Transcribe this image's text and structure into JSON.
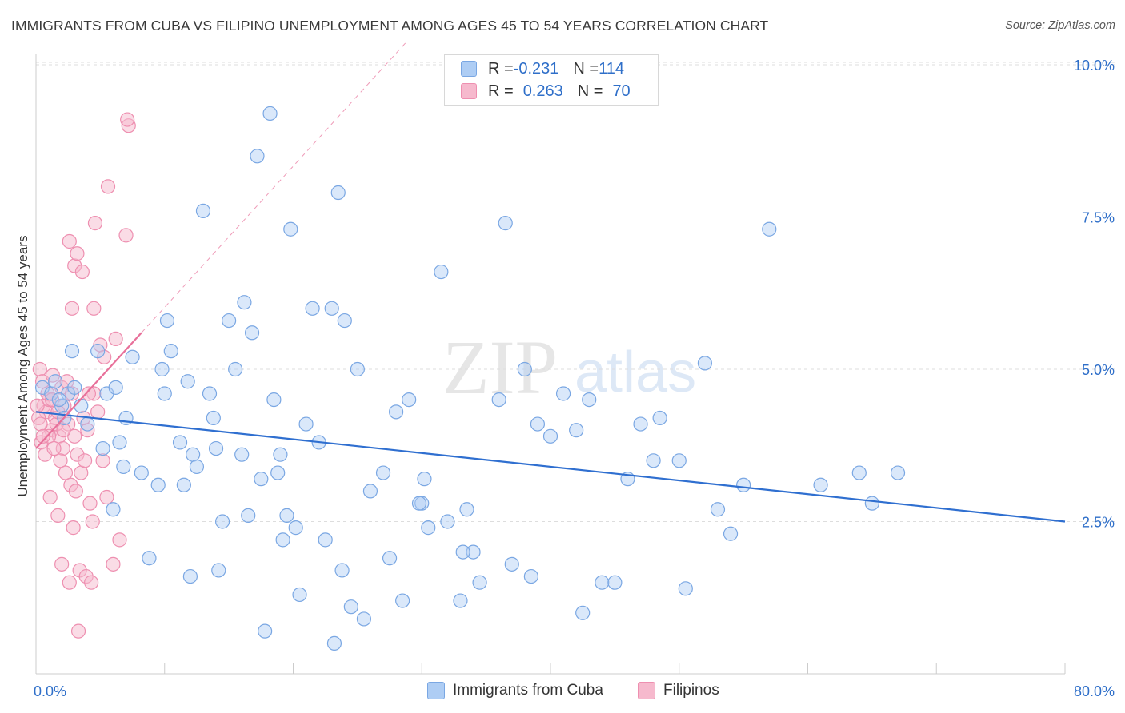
{
  "title": "IMMIGRANTS FROM CUBA VS FILIPINO UNEMPLOYMENT AMONG AGES 45 TO 54 YEARS CORRELATION CHART",
  "source": "Source: ZipAtlas.com",
  "watermark": {
    "zip": "ZIP",
    "atlas": "atlas"
  },
  "legend": {
    "r_label": "R = ",
    "n_label": "N = ",
    "rows": [
      {
        "name": "Immigrants from Cuba",
        "r": "-0.231",
        "n": "114"
      },
      {
        "name": "Filipinos",
        "r": "0.263",
        "n": "70"
      }
    ]
  },
  "colors": {
    "blue_fill": "#aecdf4",
    "blue_stroke": "#7aa7e3",
    "blue_line": "#2f6fd0",
    "blue_text": "#2f6fc9",
    "pink_fill": "#f6b9cd",
    "pink_stroke": "#ee8fb0",
    "pink_line": "#e8709a"
  },
  "chart_data": {
    "type": "scatter",
    "title": "IMMIGRANTS FROM CUBA VS FILIPINO UNEMPLOYMENT AMONG AGES 45 TO 54 YEARS CORRELATION CHART",
    "xlabel": "",
    "ylabel": "Unemployment Among Ages 45 to 54 years",
    "xlim": [
      0,
      80
    ],
    "ylim": [
      0,
      10.5
    ],
    "x_tick_labels": [
      "0.0%",
      "80.0%"
    ],
    "y_ticks": [
      2.5,
      5.0,
      7.5,
      10.0
    ],
    "y_tick_labels": [
      "2.5%",
      "5.0%",
      "7.5%",
      "10.0%"
    ],
    "grid": true,
    "series": [
      {
        "name": "Immigrants from Cuba",
        "trend": {
          "x": [
            0,
            80
          ],
          "y": [
            4.3,
            2.5
          ]
        },
        "points": [
          [
            0.5,
            4.7
          ],
          [
            1.2,
            4.6
          ],
          [
            1.5,
            4.8
          ],
          [
            2,
            4.4
          ],
          [
            2.5,
            4.6
          ],
          [
            3,
            4.7
          ],
          [
            2.2,
            4.2
          ],
          [
            3.5,
            4.4
          ],
          [
            4,
            4.1
          ],
          [
            1.8,
            4.5
          ],
          [
            2.8,
            5.3
          ],
          [
            4.8,
            5.3
          ],
          [
            7.5,
            5.2
          ],
          [
            5.5,
            4.6
          ],
          [
            6.2,
            4.7
          ],
          [
            7,
            4.2
          ],
          [
            6.5,
            3.8
          ],
          [
            8.2,
            3.3
          ],
          [
            6.8,
            3.4
          ],
          [
            9.5,
            3.1
          ],
          [
            5.2,
            3.7
          ],
          [
            6,
            2.7
          ],
          [
            8.8,
            1.9
          ],
          [
            10,
            4.6
          ],
          [
            10.5,
            5.3
          ],
          [
            9.8,
            5.0
          ],
          [
            10.2,
            5.8
          ],
          [
            11.2,
            3.8
          ],
          [
            11.5,
            3.1
          ],
          [
            11.8,
            4.8
          ],
          [
            12.2,
            3.6
          ],
          [
            12.5,
            3.4
          ],
          [
            12,
            1.6
          ],
          [
            13,
            7.6
          ],
          [
            13.5,
            4.6
          ],
          [
            14,
            3.7
          ],
          [
            14.2,
            1.7
          ],
          [
            14.5,
            2.5
          ],
          [
            15.5,
            5.0
          ],
          [
            16,
            3.6
          ],
          [
            16.5,
            2.6
          ],
          [
            16.2,
            6.1
          ],
          [
            16.8,
            5.6
          ],
          [
            17.2,
            8.5
          ],
          [
            17.5,
            3.2
          ],
          [
            17.8,
            0.7
          ],
          [
            18.2,
            9.2
          ],
          [
            18.5,
            4.5
          ],
          [
            18.8,
            3.3
          ],
          [
            19,
            3.6
          ],
          [
            19.2,
            2.2
          ],
          [
            19.5,
            2.6
          ],
          [
            19.8,
            7.3
          ],
          [
            20.2,
            2.4
          ],
          [
            20.5,
            1.3
          ],
          [
            21,
            4.1
          ],
          [
            21.5,
            6.0
          ],
          [
            22,
            3.8
          ],
          [
            23,
            6.0
          ],
          [
            23.5,
            7.9
          ],
          [
            23.2,
            0.5
          ],
          [
            23.8,
            1.7
          ],
          [
            24,
            5.8
          ],
          [
            24.5,
            1.1
          ],
          [
            25,
            5.0
          ],
          [
            25.5,
            0.9
          ],
          [
            27,
            3.3
          ],
          [
            27.5,
            1.9
          ],
          [
            28,
            4.3
          ],
          [
            28.5,
            1.2
          ],
          [
            29,
            4.5
          ],
          [
            30,
            2.8
          ],
          [
            30.2,
            3.2
          ],
          [
            30.5,
            2.4
          ],
          [
            31.5,
            6.6
          ],
          [
            32,
            2.5
          ],
          [
            33,
            1.2
          ],
          [
            33.5,
            2.7
          ],
          [
            34,
            2.0
          ],
          [
            34.5,
            1.5
          ],
          [
            36,
            4.5
          ],
          [
            37,
            1.8
          ],
          [
            38,
            5.0
          ],
          [
            39,
            4.1
          ],
          [
            38.5,
            1.6
          ],
          [
            40,
            3.9
          ],
          [
            41,
            4.6
          ],
          [
            42,
            4.0
          ],
          [
            42.5,
            1.0
          ],
          [
            44,
            1.5
          ],
          [
            45,
            1.5
          ],
          [
            46,
            3.2
          ],
          [
            47,
            4.1
          ],
          [
            48,
            3.5
          ],
          [
            48.5,
            4.2
          ],
          [
            50,
            3.5
          ],
          [
            50.5,
            1.4
          ],
          [
            52,
            5.1
          ],
          [
            53,
            2.7
          ],
          [
            54,
            2.3
          ],
          [
            55,
            3.1
          ],
          [
            57,
            7.3
          ],
          [
            61,
            3.1
          ],
          [
            64,
            3.3
          ],
          [
            65,
            2.8
          ],
          [
            67,
            3.3
          ],
          [
            36.5,
            7.4
          ],
          [
            29.8,
            2.8
          ],
          [
            33.2,
            2.0
          ],
          [
            22.5,
            2.2
          ],
          [
            13.8,
            4.2
          ],
          [
            15,
            5.8
          ],
          [
            26,
            3.0
          ],
          [
            43,
            4.5
          ]
        ]
      },
      {
        "name": "Filipinos",
        "trend": {
          "x": [
            0,
            8.2
          ],
          "y": [
            3.7,
            5.6
          ]
        },
        "points": [
          [
            0.3,
            5.0
          ],
          [
            0.5,
            4.8
          ],
          [
            0.6,
            4.4
          ],
          [
            0.8,
            4.3
          ],
          [
            1.0,
            4.5
          ],
          [
            1.2,
            4.0
          ],
          [
            0.4,
            3.8
          ],
          [
            0.7,
            3.6
          ],
          [
            1.5,
            4.2
          ],
          [
            1.8,
            3.9
          ],
          [
            2.0,
            4.7
          ],
          [
            2.2,
            4.4
          ],
          [
            2.5,
            4.1
          ],
          [
            2.8,
            4.6
          ],
          [
            3.0,
            3.9
          ],
          [
            1.3,
            4.9
          ],
          [
            0.9,
            4.6
          ],
          [
            1.6,
            4.1
          ],
          [
            2.1,
            3.7
          ],
          [
            3.2,
            3.6
          ],
          [
            3.5,
            3.3
          ],
          [
            3.8,
            3.5
          ],
          [
            4.0,
            4.0
          ],
          [
            4.2,
            2.8
          ],
          [
            4.5,
            4.6
          ],
          [
            4.8,
            4.3
          ],
          [
            5.0,
            5.4
          ],
          [
            5.2,
            3.5
          ],
          [
            5.5,
            2.9
          ],
          [
            6.0,
            1.8
          ],
          [
            6.5,
            2.2
          ],
          [
            7.0,
            7.2
          ],
          [
            7.2,
            9.0
          ],
          [
            5.6,
            8.0
          ],
          [
            4.6,
            7.4
          ],
          [
            2.6,
            7.1
          ],
          [
            3.0,
            6.7
          ],
          [
            3.2,
            6.9
          ],
          [
            3.6,
            6.6
          ],
          [
            2.8,
            6.0
          ],
          [
            4.5,
            6.0
          ],
          [
            1.0,
            3.9
          ],
          [
            1.4,
            3.7
          ],
          [
            1.9,
            3.5
          ],
          [
            2.3,
            3.3
          ],
          [
            2.7,
            3.1
          ],
          [
            3.1,
            3.0
          ],
          [
            1.1,
            2.9
          ],
          [
            1.7,
            2.6
          ],
          [
            2.9,
            2.4
          ],
          [
            3.4,
            1.7
          ],
          [
            3.9,
            1.6
          ],
          [
            4.3,
            1.5
          ],
          [
            4.4,
            2.5
          ],
          [
            3.3,
            0.7
          ],
          [
            2.0,
            1.8
          ],
          [
            2.6,
            1.5
          ],
          [
            0.2,
            4.2
          ],
          [
            0.1,
            4.4
          ],
          [
            0.35,
            4.1
          ],
          [
            1.7,
            4.3
          ],
          [
            2.4,
            4.8
          ],
          [
            3.7,
            4.2
          ],
          [
            5.3,
            5.2
          ],
          [
            0.55,
            3.9
          ],
          [
            1.25,
            4.5
          ],
          [
            2.15,
            4.0
          ],
          [
            4.1,
            4.6
          ],
          [
            6.2,
            5.5
          ],
          [
            7.1,
            9.1
          ]
        ]
      }
    ]
  }
}
